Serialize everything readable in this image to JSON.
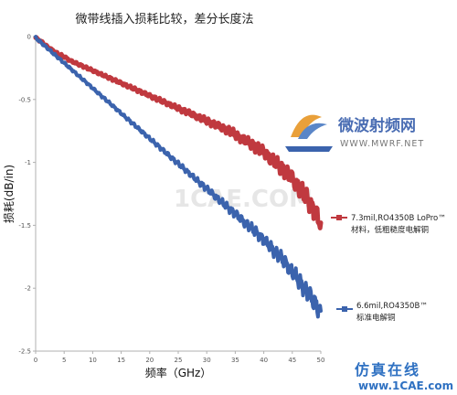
{
  "chart_data": {
    "type": "line",
    "title": "微带线插入损耗比较，差分长度法",
    "xlabel": "频率（GHz）",
    "ylabel": "损耗(dB/in)",
    "xlim": [
      0,
      50
    ],
    "ylim": [
      -2.5,
      0
    ],
    "x_ticks": [
      "0",
      "5",
      "10",
      "15",
      "20",
      "25",
      "30",
      "35",
      "40",
      "45",
      "50"
    ],
    "y_ticks": [
      "0",
      "-0.5",
      "-1",
      "-1.5",
      "-2",
      "-2.5"
    ],
    "grid": false,
    "legend_placement": "right",
    "series": [
      {
        "name_line1": "7.3mil,RO4350B LoPro™",
        "name_line2": "材料，低粗糙度电解铜",
        "color": "#c0393f",
        "x": [
          0,
          1,
          2,
          3,
          4,
          5,
          6,
          7,
          8,
          9,
          10,
          11,
          12,
          13,
          14,
          15,
          16,
          17,
          18,
          19,
          20,
          21,
          22,
          23,
          24,
          25,
          26,
          27,
          28,
          29,
          30,
          31,
          32,
          33,
          34,
          35,
          36,
          37,
          38,
          39,
          40,
          41,
          42,
          43,
          44,
          45,
          46,
          47,
          48,
          49,
          50
        ],
        "y": [
          -0.01,
          -0.04,
          -0.08,
          -0.11,
          -0.14,
          -0.16,
          -0.19,
          -0.21,
          -0.23,
          -0.25,
          -0.27,
          -0.29,
          -0.31,
          -0.33,
          -0.35,
          -0.37,
          -0.39,
          -0.41,
          -0.43,
          -0.45,
          -0.47,
          -0.49,
          -0.51,
          -0.53,
          -0.55,
          -0.57,
          -0.59,
          -0.61,
          -0.63,
          -0.65,
          -0.67,
          -0.69,
          -0.71,
          -0.73,
          -0.75,
          -0.78,
          -0.81,
          -0.83,
          -0.86,
          -0.89,
          -0.92,
          -0.96,
          -1.0,
          -1.04,
          -1.08,
          -1.13,
          -1.19,
          -1.25,
          -1.32,
          -1.4,
          -1.48
        ]
      },
      {
        "name_line1": "6.6mil,RO4350B™",
        "name_line2": "标准电解铜",
        "color": "#3b63ad",
        "x": [
          0,
          1,
          2,
          3,
          4,
          5,
          6,
          7,
          8,
          9,
          10,
          11,
          12,
          13,
          14,
          15,
          16,
          17,
          18,
          19,
          20,
          21,
          22,
          23,
          24,
          25,
          26,
          27,
          28,
          29,
          30,
          31,
          32,
          33,
          34,
          35,
          36,
          37,
          38,
          39,
          40,
          41,
          42,
          43,
          44,
          45,
          46,
          47,
          48,
          49,
          50
        ],
        "y": [
          -0.01,
          -0.05,
          -0.09,
          -0.13,
          -0.17,
          -0.21,
          -0.25,
          -0.29,
          -0.33,
          -0.37,
          -0.41,
          -0.45,
          -0.49,
          -0.53,
          -0.57,
          -0.61,
          -0.65,
          -0.69,
          -0.73,
          -0.77,
          -0.81,
          -0.85,
          -0.89,
          -0.93,
          -0.97,
          -1.01,
          -1.05,
          -1.09,
          -1.13,
          -1.17,
          -1.21,
          -1.25,
          -1.29,
          -1.33,
          -1.37,
          -1.41,
          -1.45,
          -1.49,
          -1.53,
          -1.57,
          -1.62,
          -1.66,
          -1.71,
          -1.76,
          -1.81,
          -1.87,
          -1.93,
          -1.99,
          -2.06,
          -2.12,
          -2.18
        ]
      }
    ]
  },
  "watermarks": {
    "brand_cn": "微波射频网",
    "brand_url": "WWW.MWRF.NET",
    "center_mark": "1CAE.COM",
    "bottom_cn": "仿真在线",
    "bottom_url": "www.1CAE.com"
  }
}
